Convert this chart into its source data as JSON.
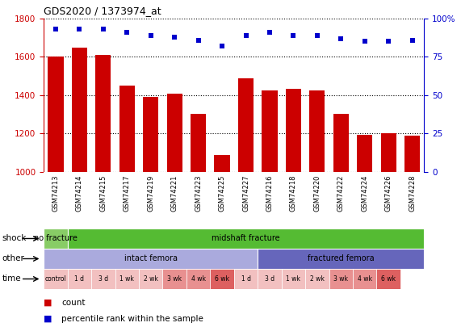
{
  "title": "GDS2020 / 1373974_at",
  "samples": [
    "GSM74213",
    "GSM74214",
    "GSM74215",
    "GSM74217",
    "GSM74219",
    "GSM74221",
    "GSM74223",
    "GSM74225",
    "GSM74227",
    "GSM74216",
    "GSM74218",
    "GSM74220",
    "GSM74222",
    "GSM74224",
    "GSM74226",
    "GSM74228"
  ],
  "counts": [
    1600,
    1650,
    1610,
    1450,
    1390,
    1410,
    1305,
    1090,
    1490,
    1425,
    1435,
    1425,
    1305,
    1195,
    1200,
    1190
  ],
  "percentile_ranks": [
    93,
    93,
    93,
    91,
    89,
    88,
    86,
    82,
    89,
    91,
    89,
    89,
    87,
    85,
    85,
    86
  ],
  "bar_color": "#cc0000",
  "dot_color": "#0000cc",
  "ylim_left": [
    1000,
    1800
  ],
  "ylim_right": [
    0,
    100
  ],
  "yticks_left": [
    1000,
    1200,
    1400,
    1600,
    1800
  ],
  "yticks_right": [
    0,
    25,
    50,
    75,
    100
  ],
  "shock_groups": [
    {
      "text": "no fracture",
      "start": 0,
      "end": 1,
      "color": "#88cc66"
    },
    {
      "text": "midshaft fracture",
      "start": 1,
      "end": 16,
      "color": "#55bb33"
    }
  ],
  "other_groups": [
    {
      "text": "intact femora",
      "start": 0,
      "end": 9,
      "color": "#aaaadd"
    },
    {
      "text": "fractured femora",
      "start": 9,
      "end": 16,
      "color": "#6666bb"
    }
  ],
  "time_cells": [
    {
      "text": "control",
      "start": 0,
      "end": 1,
      "color": "#f2c0c0"
    },
    {
      "text": "1 d",
      "start": 1,
      "end": 2,
      "color": "#f2c0c0"
    },
    {
      "text": "3 d",
      "start": 2,
      "end": 3,
      "color": "#f2c0c0"
    },
    {
      "text": "1 wk",
      "start": 3,
      "end": 4,
      "color": "#f2c0c0"
    },
    {
      "text": "2 wk",
      "start": 4,
      "end": 5,
      "color": "#f2c0c0"
    },
    {
      "text": "3 wk",
      "start": 5,
      "end": 6,
      "color": "#e89090"
    },
    {
      "text": "4 wk",
      "start": 6,
      "end": 7,
      "color": "#e89090"
    },
    {
      "text": "6 wk",
      "start": 7,
      "end": 8,
      "color": "#dd6060"
    },
    {
      "text": "1 d",
      "start": 8,
      "end": 9,
      "color": "#f2c0c0"
    },
    {
      "text": "3 d",
      "start": 9,
      "end": 10,
      "color": "#f2c0c0"
    },
    {
      "text": "1 wk",
      "start": 10,
      "end": 11,
      "color": "#f2c0c0"
    },
    {
      "text": "2 wk",
      "start": 11,
      "end": 12,
      "color": "#f2c0c0"
    },
    {
      "text": "3 wk",
      "start": 12,
      "end": 13,
      "color": "#e89090"
    },
    {
      "text": "4 wk",
      "start": 13,
      "end": 14,
      "color": "#e89090"
    },
    {
      "text": "6 wk",
      "start": 14,
      "end": 15,
      "color": "#dd6060"
    }
  ],
  "legend_count_color": "#cc0000",
  "legend_dot_color": "#0000cc",
  "axis_color_left": "#cc0000",
  "axis_color_right": "#0000cc",
  "bg_color": "#ffffff",
  "sample_bg": "#dddddd"
}
